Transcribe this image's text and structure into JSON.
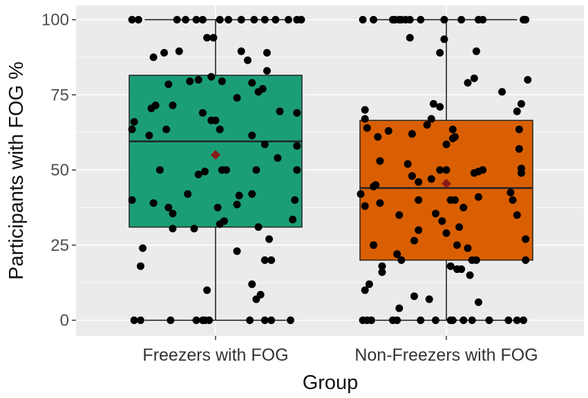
{
  "chart_data": {
    "type": "box",
    "xlabel": "Group",
    "ylabel": "Participants with FOG %",
    "ylim": [
      0,
      100
    ],
    "yticks": [
      0,
      25,
      50,
      75,
      100
    ],
    "grid": true,
    "legend": "none",
    "categories": [
      "Freezers with FOG",
      "Non-Freezers with FOG"
    ],
    "boxes": [
      {
        "category": "Freezers with FOG",
        "color": "#1b9e77",
        "whisker_low": 0,
        "q1": 31,
        "median": 59.5,
        "q3": 81.5,
        "whisker_high": 100,
        "mean": 55
      },
      {
        "category": "Non-Freezers with FOG",
        "color": "#d95f02",
        "whisker_low": 0,
        "q1": 20,
        "median": 44,
        "q3": 66.5,
        "whisker_high": 100,
        "mean": 45.5
      }
    ],
    "mean_marker_color": "#8b1a1a",
    "points": [
      [
        [
          -0.39,
          100
        ],
        [
          -0.36,
          100
        ],
        [
          -0.18,
          100
        ],
        [
          -0.14,
          100
        ],
        [
          -0.09,
          100
        ],
        [
          -0.06,
          100
        ],
        [
          0.02,
          100
        ],
        [
          0.06,
          100
        ],
        [
          0.12,
          100
        ],
        [
          0.18,
          100
        ],
        [
          0.23,
          100
        ],
        [
          0.28,
          100
        ],
        [
          0.34,
          100
        ],
        [
          0.38,
          100
        ],
        [
          0.4,
          100
        ],
        [
          -0.04,
          94
        ],
        [
          -0.01,
          94
        ],
        [
          -0.29,
          87.5
        ],
        [
          -0.24,
          89
        ],
        [
          -0.17,
          89.5
        ],
        [
          0.12,
          89.5
        ],
        [
          0.24,
          89
        ],
        [
          0.15,
          86.5
        ],
        [
          0.24,
          83
        ],
        [
          -0.22,
          78.5
        ],
        [
          -0.12,
          79.5
        ],
        [
          -0.08,
          80
        ],
        [
          -0.02,
          81
        ],
        [
          0.03,
          79.5
        ],
        [
          0.17,
          79
        ],
        [
          0.2,
          76
        ],
        [
          0.22,
          77
        ],
        [
          -0.38,
          66
        ],
        [
          -0.3,
          70.5
        ],
        [
          -0.28,
          71.5
        ],
        [
          -0.2,
          71.5
        ],
        [
          0.1,
          74
        ],
        [
          0.3,
          69.5
        ],
        [
          0.38,
          69
        ],
        [
          -0.39,
          63.5
        ],
        [
          -0.31,
          61.5
        ],
        [
          -0.23,
          63.5
        ],
        [
          -0.06,
          69
        ],
        [
          -0.02,
          66.5
        ],
        [
          0.0,
          66.5
        ],
        [
          0.02,
          63.5
        ],
        [
          0.17,
          61.5
        ],
        [
          0.23,
          58.5
        ],
        [
          0.38,
          58
        ],
        [
          -0.26,
          50
        ],
        [
          -0.08,
          48.5
        ],
        [
          -0.05,
          49.5
        ],
        [
          0.03,
          50
        ],
        [
          0.05,
          50
        ],
        [
          0.19,
          50
        ],
        [
          0.29,
          54
        ],
        [
          0.38,
          50
        ],
        [
          -0.39,
          40
        ],
        [
          -0.29,
          39
        ],
        [
          -0.22,
          37.5
        ],
        [
          -0.2,
          35.5
        ],
        [
          -0.13,
          42
        ],
        [
          0.01,
          37.5
        ],
        [
          0.1,
          38.5
        ],
        [
          0.11,
          41.5
        ],
        [
          0.17,
          42
        ],
        [
          0.37,
          40
        ],
        [
          0.36,
          33.5
        ],
        [
          -0.2,
          30.5
        ],
        [
          -0.1,
          30.5
        ],
        [
          0.02,
          32
        ],
        [
          0.04,
          33
        ],
        [
          0.2,
          31
        ],
        [
          -0.34,
          24
        ],
        [
          0.1,
          23
        ],
        [
          0.25,
          27
        ],
        [
          0.23,
          20
        ],
        [
          0.26,
          20
        ],
        [
          -0.35,
          18
        ],
        [
          -0.04,
          10
        ],
        [
          0.17,
          12
        ],
        [
          0.19,
          7
        ],
        [
          0.21,
          8.5
        ],
        [
          -0.38,
          0
        ],
        [
          -0.35,
          0
        ],
        [
          -0.21,
          0
        ],
        [
          -0.09,
          0
        ],
        [
          -0.06,
          0
        ],
        [
          -0.05,
          0
        ],
        [
          -0.03,
          0
        ],
        [
          0.16,
          0
        ],
        [
          0.23,
          0
        ],
        [
          0.26,
          0
        ],
        [
          0.35,
          0
        ]
      ],
      [
        [
          -0.39,
          100
        ],
        [
          -0.34,
          100
        ],
        [
          -0.25,
          100
        ],
        [
          -0.24,
          100
        ],
        [
          -0.22,
          100
        ],
        [
          -0.21,
          100
        ],
        [
          -0.19,
          100
        ],
        [
          -0.17,
          100
        ],
        [
          -0.12,
          100
        ],
        [
          -0.01,
          100
        ],
        [
          0.07,
          100
        ],
        [
          0.15,
          100
        ],
        [
          0.17,
          100
        ],
        [
          0.36,
          100
        ],
        [
          0.37,
          100
        ],
        [
          -0.17,
          94
        ],
        [
          -0.01,
          93.5
        ],
        [
          -0.03,
          89
        ],
        [
          0.14,
          89.5
        ],
        [
          0.1,
          79
        ],
        [
          0.13,
          80.5
        ],
        [
          0.26,
          76
        ],
        [
          0.38,
          80
        ],
        [
          -0.38,
          70
        ],
        [
          -0.38,
          67
        ],
        [
          -0.06,
          72
        ],
        [
          -0.03,
          71
        ],
        [
          0.33,
          69.5
        ],
        [
          0.35,
          72
        ],
        [
          -0.37,
          64
        ],
        [
          -0.32,
          61
        ],
        [
          -0.27,
          63
        ],
        [
          -0.16,
          62
        ],
        [
          -0.09,
          65
        ],
        [
          -0.07,
          67
        ],
        [
          0.03,
          60.5
        ],
        [
          0.03,
          63.5
        ],
        [
          0.04,
          61
        ],
        [
          0.0,
          58.5
        ],
        [
          0.34,
          63.5
        ],
        [
          0.34,
          57
        ],
        [
          -0.31,
          53
        ],
        [
          -0.18,
          52
        ],
        [
          -0.16,
          48
        ],
        [
          -0.13,
          46
        ],
        [
          -0.03,
          50
        ],
        [
          0.0,
          50
        ],
        [
          0.13,
          49
        ],
        [
          0.15,
          49.5
        ],
        [
          0.17,
          50
        ],
        [
          0.3,
          42.5
        ],
        [
          0.35,
          50.5
        ],
        [
          0.35,
          49
        ],
        [
          -0.4,
          42
        ],
        [
          -0.38,
          38
        ],
        [
          -0.34,
          44.5
        ],
        [
          -0.33,
          45
        ],
        [
          -0.31,
          39
        ],
        [
          -0.13,
          40
        ],
        [
          -0.07,
          47
        ],
        [
          0.02,
          40
        ],
        [
          0.04,
          40
        ],
        [
          0.15,
          41
        ],
        [
          0.31,
          40
        ],
        [
          0.33,
          35
        ],
        [
          -0.22,
          35
        ],
        [
          -0.13,
          30
        ],
        [
          -0.05,
          35.5
        ],
        [
          -0.02,
          33
        ],
        [
          0.0,
          29
        ],
        [
          0.05,
          25
        ],
        [
          0.08,
          37.5
        ],
        [
          0.06,
          31
        ],
        [
          -0.34,
          25
        ],
        [
          -0.3,
          18
        ],
        [
          -0.23,
          22
        ],
        [
          -0.21,
          20
        ],
        [
          -0.15,
          26.5
        ],
        [
          0.1,
          24
        ],
        [
          0.12,
          20
        ],
        [
          0.14,
          20
        ],
        [
          0.37,
          27
        ],
        [
          0.37,
          20
        ],
        [
          -0.38,
          10
        ],
        [
          -0.36,
          12
        ],
        [
          -0.3,
          16
        ],
        [
          -0.22,
          4
        ],
        [
          -0.15,
          8
        ],
        [
          -0.08,
          7
        ],
        [
          0.02,
          18
        ],
        [
          0.05,
          17
        ],
        [
          0.07,
          17
        ],
        [
          0.11,
          15
        ],
        [
          0.15,
          6
        ],
        [
          -0.39,
          0
        ],
        [
          -0.37,
          0
        ],
        [
          -0.35,
          0
        ],
        [
          -0.25,
          0
        ],
        [
          -0.23,
          0
        ],
        [
          -0.12,
          0
        ],
        [
          -0.05,
          0
        ],
        [
          0.02,
          0
        ],
        [
          0.03,
          0
        ],
        [
          0.08,
          0
        ],
        [
          0.12,
          0
        ],
        [
          0.2,
          0
        ],
        [
          0.29,
          0
        ],
        [
          0.33,
          0
        ],
        [
          0.36,
          0
        ]
      ]
    ]
  }
}
